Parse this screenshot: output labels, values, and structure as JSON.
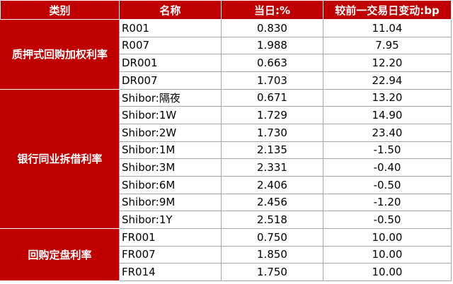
{
  "headers": [
    "类别",
    "名称",
    "当日:%",
    "较前一交易日变动:bp"
  ],
  "groups": [
    {
      "category": "质押式回购加权利率",
      "rows": [
        {
          "name": "R001",
          "value": "0.830",
          "change": "11.04"
        },
        {
          "name": "R007",
          "value": "1.988",
          "change": "7.95"
        },
        {
          "name": "DR001",
          "value": "0.663",
          "change": "12.20"
        },
        {
          "name": "DR007",
          "value": "1.703",
          "change": "22.94"
        }
      ]
    },
    {
      "category": "银行同业拆借利率",
      "rows": [
        {
          "name": "Shibor:隔夜",
          "value": "0.671",
          "change": "13.20"
        },
        {
          "name": "Shibor:1W",
          "value": "1.729",
          "change": "14.90"
        },
        {
          "name": "Shibor:2W",
          "value": "1.730",
          "change": "23.40"
        },
        {
          "name": "Shibor:1M",
          "value": "2.135",
          "change": "-1.50"
        },
        {
          "name": "Shibor:3M",
          "value": "2.331",
          "change": "-0.40"
        },
        {
          "name": "Shibor:6M",
          "value": "2.406",
          "change": "-0.50"
        },
        {
          "name": "Shibor:9M",
          "value": "2.456",
          "change": "-1.20"
        },
        {
          "name": "Shibor:1Y",
          "value": "2.518",
          "change": "-0.50"
        }
      ]
    },
    {
      "category": "回购定盘利率",
      "rows": [
        {
          "name": "FR001",
          "value": "0.750",
          "change": "10.00"
        },
        {
          "name": "FR007",
          "value": "1.850",
          "change": "10.00"
        },
        {
          "name": "FR014",
          "value": "1.750",
          "change": "10.00"
        }
      ]
    }
  ],
  "colors": {
    "header_bg": "#c00000",
    "header_text": "#ffffff",
    "grid": "#a6a6a6"
  }
}
